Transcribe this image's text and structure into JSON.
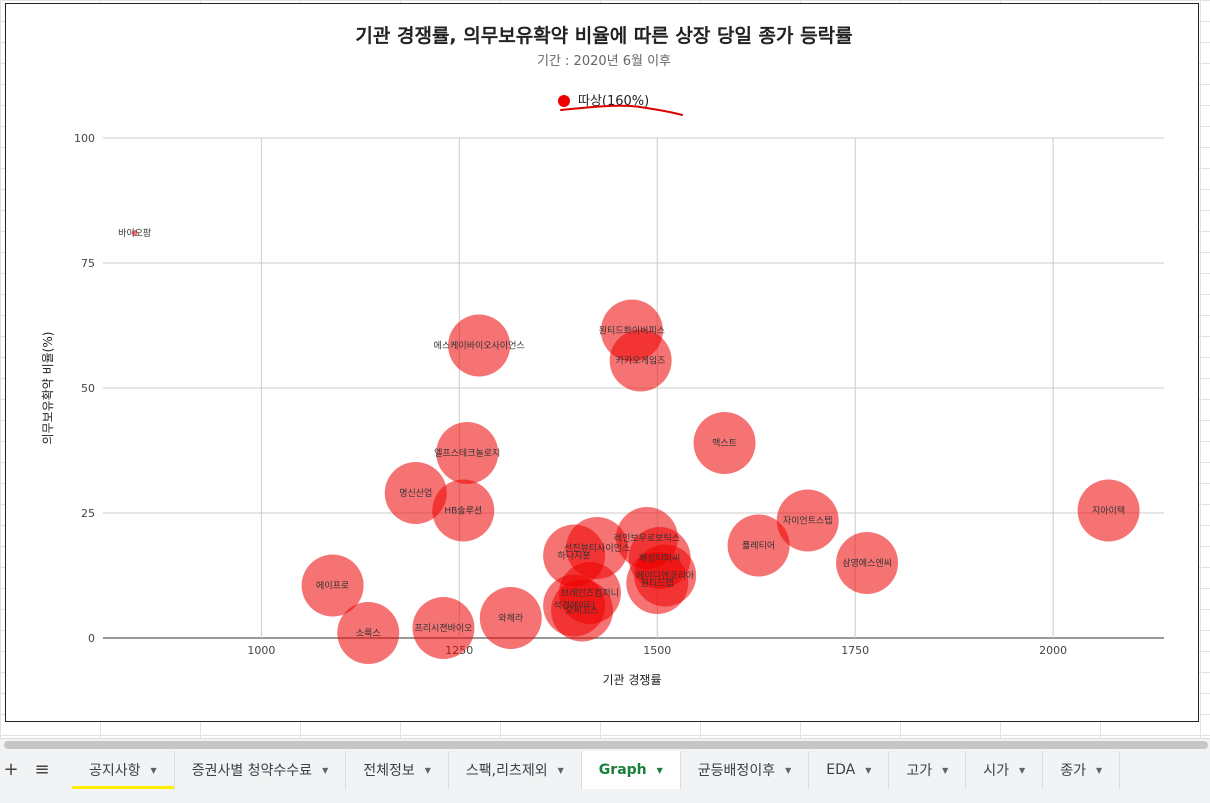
{
  "chart_data": {
    "type": "scatter",
    "title": "기관 경쟁률, 의무보유확약 비율에 따른 상장 당일 종가 등락률",
    "subtitle": "기간 : 2020년 6월 이후",
    "xlabel": "기관 경쟁률",
    "ylabel": "의무보유확약 비율(%)",
    "xlim": [
      800,
      2140
    ],
    "ylim": [
      0,
      100
    ],
    "xticks": [
      1000,
      1250,
      1500,
      1750,
      2000
    ],
    "yticks": [
      0,
      25,
      50,
      75,
      100
    ],
    "grid": true,
    "legend_position": "top",
    "series": [
      {
        "name": "따상(160%)",
        "color": "#ee0000",
        "points": [
          {
            "label": "바이오팜",
            "x": 840,
            "y": 81,
            "size": 0.5
          },
          {
            "label": "에스케이바이오사이언스",
            "x": 1275,
            "y": 58.5,
            "size": 1
          },
          {
            "label": "원티드화이버피스",
            "x": 1468,
            "y": 61.5,
            "size": 1
          },
          {
            "label": "카카오게임즈",
            "x": 1479,
            "y": 55.5,
            "size": 1
          },
          {
            "label": "엘프스테크놀로지",
            "x": 1260,
            "y": 37,
            "size": 1
          },
          {
            "label": "명신산업",
            "x": 1195,
            "y": 29,
            "size": 1
          },
          {
            "label": "HB솔루션",
            "x": 1255,
            "y": 25.5,
            "size": 1
          },
          {
            "label": "맥스트",
            "x": 1585,
            "y": 39,
            "size": 1
          },
          {
            "label": "자이언트스텝",
            "x": 1690,
            "y": 23.5,
            "size": 1
          },
          {
            "label": "지아이텍",
            "x": 2070,
            "y": 25.5,
            "size": 1
          },
          {
            "label": "플레티어",
            "x": 1628,
            "y": 18.5,
            "size": 1
          },
          {
            "label": "삼영에스엔씨",
            "x": 1765,
            "y": 15,
            "size": 1
          },
          {
            "label": "레인보우로보틱스",
            "x": 1487,
            "y": 20,
            "size": 1
          },
          {
            "label": "선진뷰티사이언스",
            "x": 1424,
            "y": 18,
            "size": 1
          },
          {
            "label": "하나지분",
            "x": 1395,
            "y": 16.5,
            "size": 1
          },
          {
            "label": "해성티피씨",
            "x": 1503,
            "y": 16,
            "size": 1
          },
          {
            "label": "에이디엔코리아",
            "x": 1510,
            "y": 12.5,
            "size": 1
          },
          {
            "label": "원티드랩",
            "x": 1500,
            "y": 11,
            "size": 1
          },
          {
            "label": "에이프로",
            "x": 1090,
            "y": 10.5,
            "size": 1
          },
          {
            "label": "브레인즈컴퍼니",
            "x": 1415,
            "y": 9,
            "size": 1
          },
          {
            "label": "석경에이티",
            "x": 1395,
            "y": 6.5,
            "size": 1
          },
          {
            "label": "오비고스",
            "x": 1405,
            "y": 5.5,
            "size": 1
          },
          {
            "label": "와체라",
            "x": 1315,
            "y": 4,
            "size": 1
          },
          {
            "label": "프리시젼바이오",
            "x": 1230,
            "y": 2,
            "size": 1
          },
          {
            "label": "소룩스",
            "x": 1135,
            "y": 1,
            "size": 1
          }
        ]
      }
    ]
  },
  "tabs": {
    "add_icon": "plus-icon",
    "list_icon": "menu-icon",
    "items": [
      {
        "label": "공지사항"
      },
      {
        "label": "증권사별 청약수수료"
      },
      {
        "label": "전체정보"
      },
      {
        "label": "스팩,리츠제외"
      },
      {
        "label": "Graph"
      },
      {
        "label": "균등배정이후"
      },
      {
        "label": "EDA"
      },
      {
        "label": "고가"
      },
      {
        "label": "시가"
      },
      {
        "label": "종가"
      }
    ],
    "active_index": 4,
    "active_color": "#188038",
    "highlight_color": "#ffee00"
  },
  "annotation_color": "#dd0000"
}
